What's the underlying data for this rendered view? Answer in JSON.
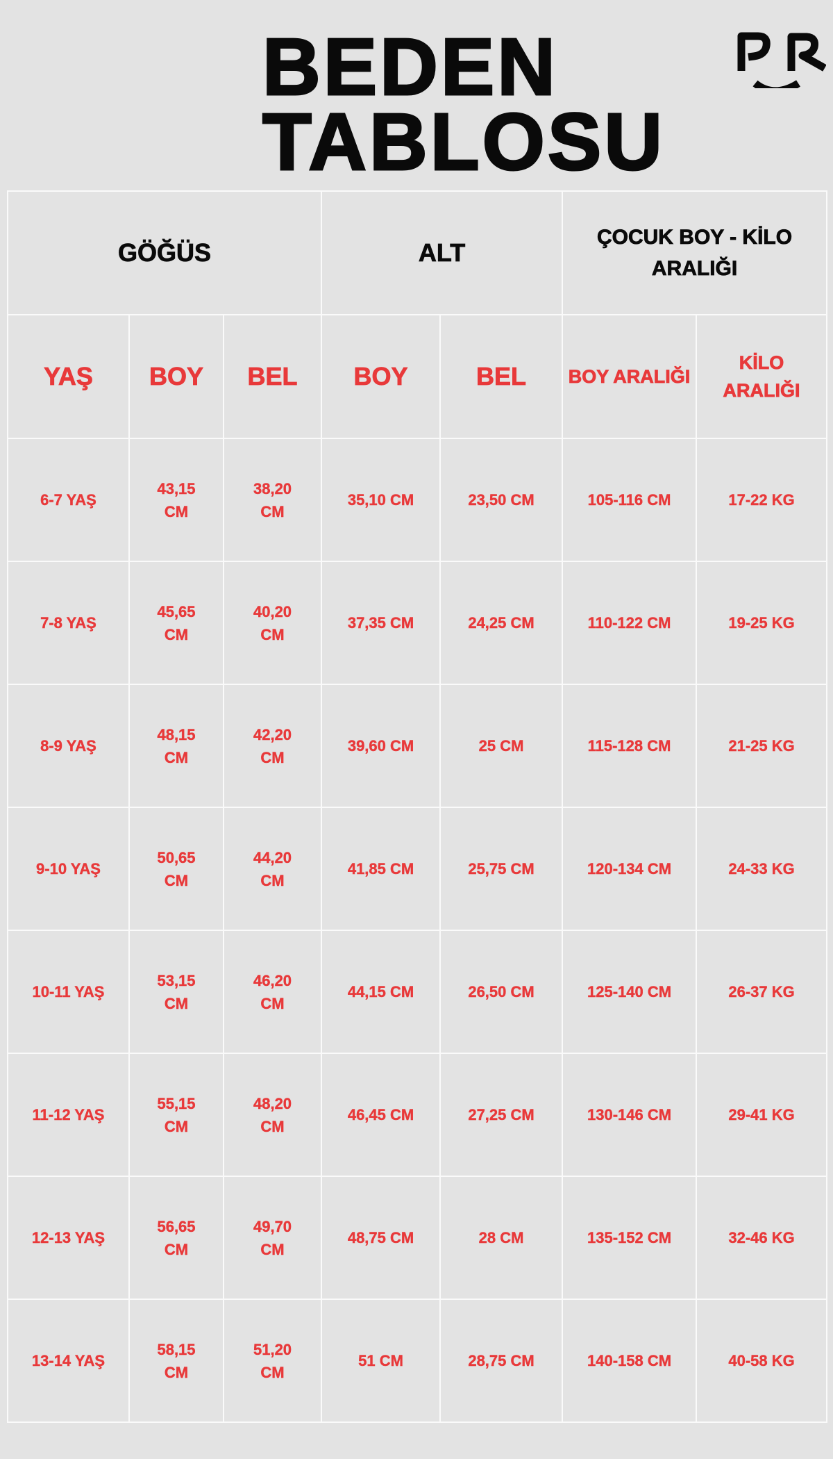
{
  "title": {
    "line1": "BEDEN",
    "line2": "TABLOSU"
  },
  "logo": {
    "text": "PR"
  },
  "colors": {
    "background": "#e3e3e3",
    "accent": "#e8393a",
    "text": "#0a0a0a",
    "grid": "#fafafa"
  },
  "groups": [
    "GÖĞÜS",
    "ALT",
    "ÇOCUK BOY - KİLO ARALIĞI"
  ],
  "columns": [
    "YAŞ",
    "BOY",
    "BEL",
    "BOY",
    "BEL",
    "BOY ARALIĞI",
    "KİLO ARALIĞI"
  ],
  "rows": [
    [
      "6-7 YAŞ",
      "43,15 CM",
      "38,20 CM",
      "35,10 CM",
      "23,50 CM",
      "105-116 CM",
      "17-22 KG"
    ],
    [
      "7-8 YAŞ",
      "45,65 CM",
      "40,20 CM",
      "37,35 CM",
      "24,25 CM",
      "110-122 CM",
      "19-25 KG"
    ],
    [
      "8-9 YAŞ",
      "48,15 CM",
      "42,20 CM",
      "39,60 CM",
      "25 CM",
      "115-128 CM",
      "21-25 KG"
    ],
    [
      "9-10 YAŞ",
      "50,65 CM",
      "44,20 CM",
      "41,85 CM",
      "25,75 CM",
      "120-134 CM",
      "24-33 KG"
    ],
    [
      "10-11 YAŞ",
      "53,15 CM",
      "46,20 CM",
      "44,15 CM",
      "26,50 CM",
      "125-140 CM",
      "26-37 KG"
    ],
    [
      "11-12 YAŞ",
      "55,15 CM",
      "48,20 CM",
      "46,45 CM",
      "27,25 CM",
      "130-146 CM",
      "29-41 KG"
    ],
    [
      "12-13 YAŞ",
      "56,65 CM",
      "49,70 CM",
      "48,75 CM",
      "28 CM",
      "135-152 CM",
      "32-46 KG"
    ],
    [
      "13-14 YAŞ",
      "58,15 CM",
      "51,20 CM",
      "51 CM",
      "28,75 CM",
      "140-158 CM",
      "40-58 KG"
    ]
  ]
}
